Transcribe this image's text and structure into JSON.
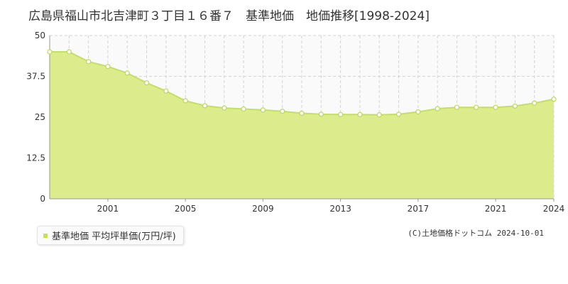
{
  "title": "広島県福山市北吉津町３丁目１６番７　基準地価　地価推移[1998-2024]",
  "copyright": "(C)土地価格ドットコム 2024-10-01",
  "colors": {
    "area_fill": "#dcec8c",
    "line": "#c5df60",
    "marker_fill": "#ffffff",
    "marker_stroke": "#bcd65a",
    "plot_bg": "#fafafa",
    "grid": "#d4d4d4",
    "legend_marker": "#c6e05a"
  },
  "chart_data": {
    "type": "area",
    "title": "広島県福山市北吉津町３丁目１６番７　基準地価　地価推移[1998-2024]",
    "xlabel": "",
    "ylabel": "",
    "xlim": [
      1998,
      2024
    ],
    "ylim": [
      0,
      50
    ],
    "yticks": [
      0,
      12.5,
      25,
      37.5,
      50
    ],
    "ytick_labels": [
      "0",
      "12.5",
      "25",
      "37.5",
      "50"
    ],
    "xticks": [
      2001,
      2005,
      2009,
      2013,
      2017,
      2021,
      2024
    ],
    "xtick_labels": [
      "2001",
      "2005",
      "2009",
      "2013",
      "2017",
      "2021",
      "2024"
    ],
    "grid": true,
    "legend_position": "bottom-left",
    "series": [
      {
        "name": "基準地価 平均坪単価(万円/坪)",
        "x": [
          1998,
          1999,
          2000,
          2001,
          2002,
          2003,
          2004,
          2005,
          2006,
          2007,
          2008,
          2009,
          2010,
          2011,
          2012,
          2013,
          2014,
          2015,
          2016,
          2017,
          2018,
          2019,
          2020,
          2021,
          2022,
          2023,
          2024
        ],
        "values": [
          45.0,
          45.0,
          42.0,
          40.5,
          38.5,
          35.5,
          33.0,
          30.0,
          28.5,
          27.8,
          27.5,
          27.2,
          26.8,
          26.2,
          25.9,
          25.8,
          25.8,
          25.7,
          25.9,
          26.6,
          27.6,
          28.0,
          28.0,
          28.0,
          28.4,
          29.3,
          30.5
        ]
      }
    ]
  }
}
